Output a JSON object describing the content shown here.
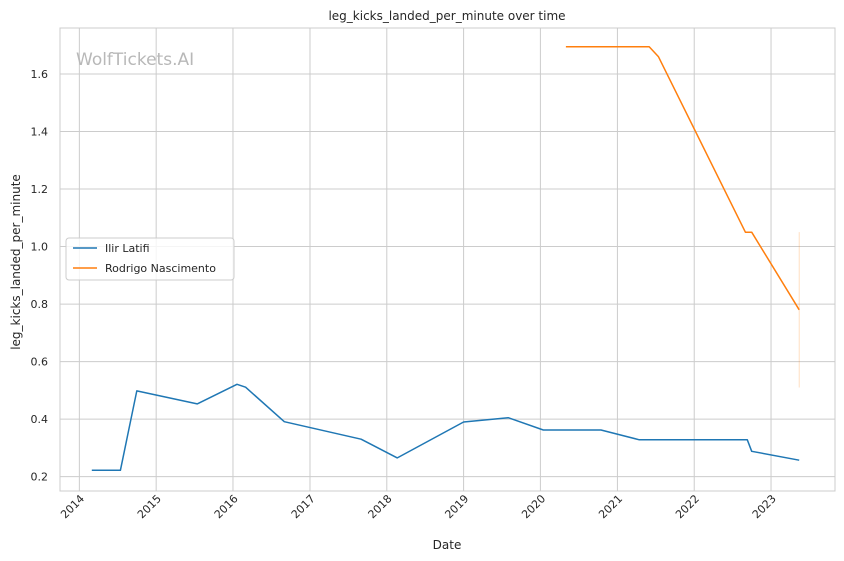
{
  "watermark": "WolfTickets.AI",
  "chart_data": {
    "type": "line",
    "title": "leg_kicks_landed_per_minute over time",
    "xlabel": "Date",
    "ylabel": "leg_kicks_landed_per_minute",
    "xlim": [
      "2013-10-01",
      "2023-11-01"
    ],
    "ylim": [
      0.15,
      1.76
    ],
    "x_ticks": [
      "2014",
      "2015",
      "2016",
      "2017",
      "2018",
      "2019",
      "2020",
      "2021",
      "2022",
      "2023"
    ],
    "y_ticks": [
      "0.2",
      "0.4",
      "0.6",
      "0.8",
      "1.0",
      "1.2",
      "1.4",
      "1.6"
    ],
    "grid": true,
    "legend_position": "center-left",
    "series": [
      {
        "name": "Ilir Latifi",
        "color": "#1f77b4",
        "points": [
          [
            "2014-03-01",
            0.222
          ],
          [
            "2014-07-15",
            0.222
          ],
          [
            "2014-10-01",
            0.498
          ],
          [
            "2015-07-15",
            0.453
          ],
          [
            "2016-01-20",
            0.521
          ],
          [
            "2016-03-01",
            0.511
          ],
          [
            "2016-09-01",
            0.391
          ],
          [
            "2017-09-01",
            0.33
          ],
          [
            "2018-02-20",
            0.265
          ],
          [
            "2019-01-01",
            0.39
          ],
          [
            "2019-08-01",
            0.405
          ],
          [
            "2020-01-15",
            0.362
          ],
          [
            "2020-10-15",
            0.362
          ],
          [
            "2021-04-15",
            0.328
          ],
          [
            "2022-09-10",
            0.328
          ],
          [
            "2022-10-01",
            0.288
          ],
          [
            "2023-05-15",
            0.257
          ]
        ]
      },
      {
        "name": "Rodrigo Nascimento",
        "color": "#ff7f0e",
        "points": [
          [
            "2020-05-01",
            1.695
          ],
          [
            "2021-06-01",
            1.695
          ],
          [
            "2021-07-15",
            1.66
          ],
          [
            "2022-09-01",
            1.05
          ],
          [
            "2022-10-01",
            1.05
          ],
          [
            "2023-05-15",
            0.78
          ]
        ]
      }
    ],
    "error_band": {
      "series": "Rodrigo Nascimento",
      "x": "2023-05-15",
      "low": 0.51,
      "high": 1.05
    }
  }
}
